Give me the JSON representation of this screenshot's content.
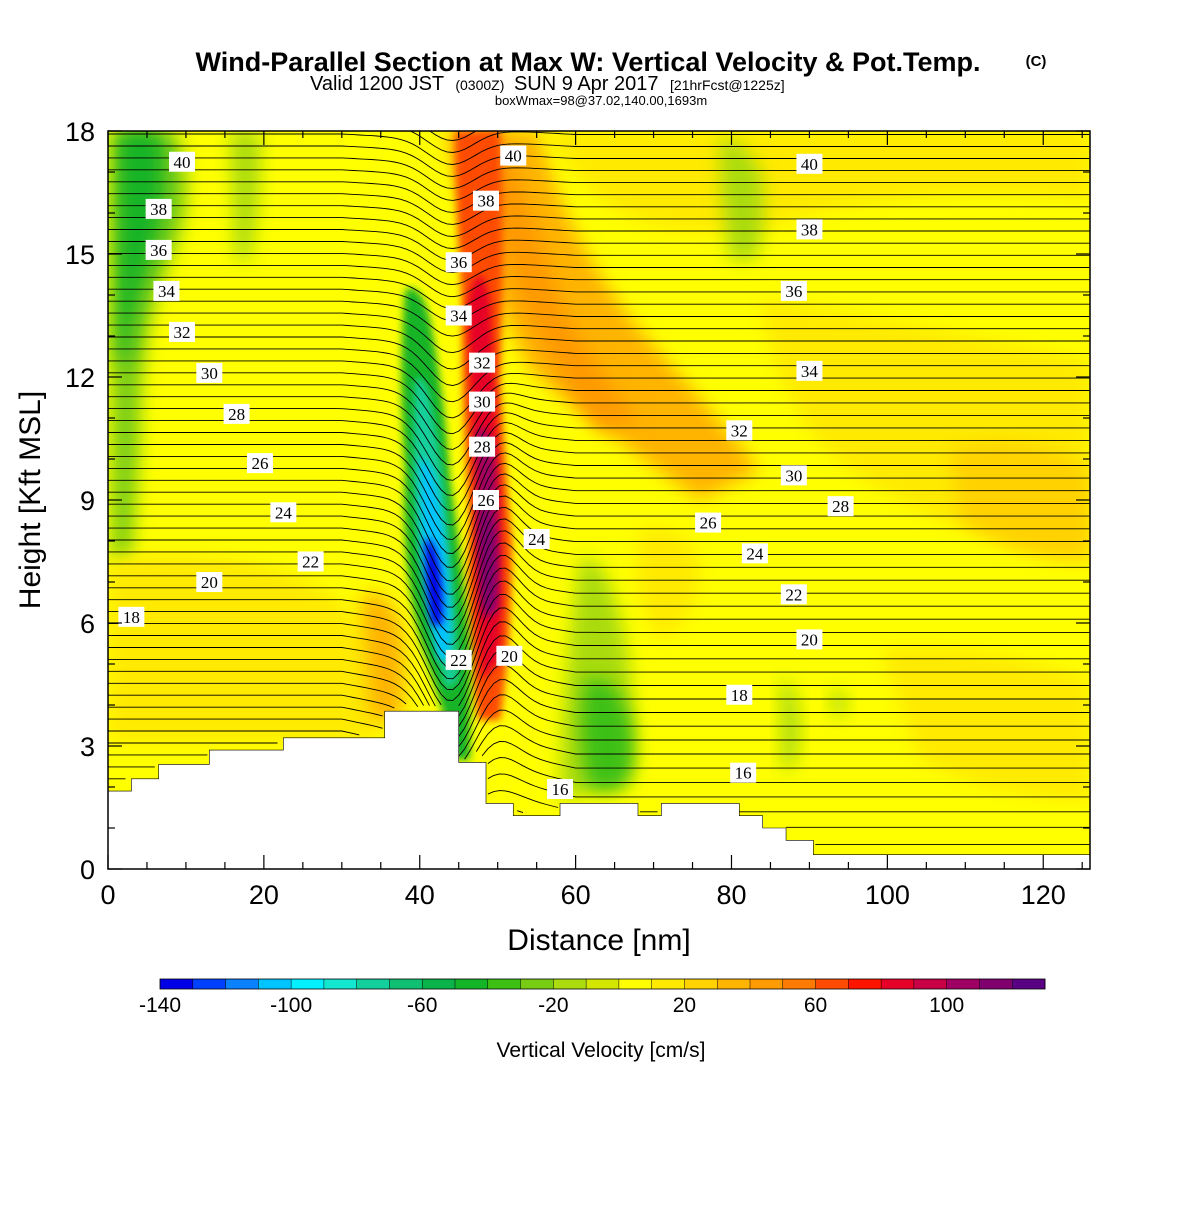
{
  "header": {
    "title": "Wind-Parallel Section at Max W: Vertical Velocity & Pot.Temp.",
    "copyright": "(C)",
    "valid_prefix": "Valid 1200 JST",
    "valid_utc": "(0300Z)",
    "valid_date": "SUN 9 Apr 2017",
    "forecast": "[21hrFcst@1225z]",
    "boxinfo": "boxWmax=98@37.02,140.00,1693m"
  },
  "colors": {
    "background": "#ffff00",
    "terrain": "#ffffff",
    "contour": "#000000"
  },
  "chart_data": {
    "type": "heatmap",
    "xlabel": "Distance [nm]",
    "ylabel": "Height [Kft MSL]",
    "xlim": [
      0,
      126
    ],
    "ylim": [
      0,
      18
    ],
    "xticks": [
      0,
      20,
      40,
      60,
      80,
      100,
      120
    ],
    "yticks": [
      0,
      3,
      6,
      9,
      12,
      15,
      18
    ],
    "colorbar": {
      "title": "Vertical Velocity [cm/s]",
      "min": -140,
      "max": 120,
      "step": 10,
      "tick_values": [
        -140,
        -100,
        -60,
        -20,
        20,
        60,
        100
      ],
      "colors": [
        "#0000e6",
        "#0040ff",
        "#0a82ff",
        "#00c4ff",
        "#00f0ff",
        "#14e6cf",
        "#12cf9b",
        "#10c072",
        "#0ab44a",
        "#14b428",
        "#3cc014",
        "#78cc14",
        "#aadc10",
        "#d2e600",
        "#ffff00",
        "#ffea00",
        "#ffd200",
        "#ffb400",
        "#ff9a00",
        "#ff7a00",
        "#ff4c00",
        "#ff1400",
        "#e60028",
        "#c80046",
        "#a00064",
        "#80006e",
        "#5a0082"
      ]
    },
    "terrain_profile_kft": [
      {
        "x": 0,
        "top": 1.9
      },
      {
        "x": 3,
        "top": 2.2
      },
      {
        "x": 6.5,
        "top": 2.55
      },
      {
        "x": 13,
        "top": 2.9
      },
      {
        "x": 22.5,
        "top": 3.2
      },
      {
        "x": 35.5,
        "top": 3.85
      },
      {
        "x": 45,
        "top": 2.6
      },
      {
        "x": 48.5,
        "top": 1.6
      },
      {
        "x": 52,
        "top": 1.3
      },
      {
        "x": 58,
        "top": 1.6
      },
      {
        "x": 68,
        "top": 1.3
      },
      {
        "x": 71,
        "top": 1.6
      },
      {
        "x": 81,
        "top": 1.3
      },
      {
        "x": 84,
        "top": 1.0
      },
      {
        "x": 87,
        "top": 0.7
      },
      {
        "x": 90.5,
        "top": 0.35
      },
      {
        "x": 126,
        "top": 0.35
      }
    ],
    "velocity_features": [
      {
        "kind": "downdraft",
        "x": 42.5,
        "y": 7.2,
        "min_cms": -140
      },
      {
        "kind": "updraft",
        "x": 48.5,
        "y": 7.8,
        "max_cms": 120
      },
      {
        "kind": "downdraft",
        "x": 4.5,
        "y": 14,
        "min_cms": -50
      },
      {
        "kind": "updraft",
        "x": 60,
        "y": 13,
        "max_cms": 40
      },
      {
        "kind": "downdraft",
        "x": 63,
        "y": 3,
        "min_cms": -50
      }
    ],
    "theta_contours": {
      "unit": "C",
      "levels": [
        16,
        18,
        20,
        22,
        24,
        26,
        28,
        30,
        32,
        34,
        36,
        38,
        40
      ],
      "labels": [
        {
          "text": "40",
          "x": 9.5,
          "y": 17.25
        },
        {
          "text": "38",
          "x": 6.5,
          "y": 16.1
        },
        {
          "text": "36",
          "x": 6.5,
          "y": 15.1
        },
        {
          "text": "34",
          "x": 7.5,
          "y": 14.1
        },
        {
          "text": "32",
          "x": 9.5,
          "y": 13.1
        },
        {
          "text": "30",
          "x": 13,
          "y": 12.1
        },
        {
          "text": "28",
          "x": 16.5,
          "y": 11.1
        },
        {
          "text": "26",
          "x": 19.5,
          "y": 9.9
        },
        {
          "text": "24",
          "x": 22.5,
          "y": 8.7
        },
        {
          "text": "22",
          "x": 26,
          "y": 7.5
        },
        {
          "text": "20",
          "x": 13,
          "y": 7.0
        },
        {
          "text": "18",
          "x": 3,
          "y": 6.15
        },
        {
          "text": "40",
          "x": 52,
          "y": 17.4
        },
        {
          "text": "38",
          "x": 48.5,
          "y": 16.3
        },
        {
          "text": "36",
          "x": 45,
          "y": 14.8
        },
        {
          "text": "34",
          "x": 45,
          "y": 13.5
        },
        {
          "text": "32",
          "x": 48,
          "y": 12.35
        },
        {
          "text": "30",
          "x": 48,
          "y": 11.4
        },
        {
          "text": "28",
          "x": 48,
          "y": 10.3
        },
        {
          "text": "26",
          "x": 48.5,
          "y": 9.0
        },
        {
          "text": "24",
          "x": 55,
          "y": 8.05
        },
        {
          "text": "22",
          "x": 45,
          "y": 5.1
        },
        {
          "text": "20",
          "x": 51.5,
          "y": 5.2
        },
        {
          "text": "16",
          "x": 58,
          "y": 1.95
        },
        {
          "text": "40",
          "x": 90,
          "y": 17.2
        },
        {
          "text": "38",
          "x": 90,
          "y": 15.6
        },
        {
          "text": "36",
          "x": 88,
          "y": 14.1
        },
        {
          "text": "34",
          "x": 90,
          "y": 12.15
        },
        {
          "text": "32",
          "x": 81,
          "y": 10.7
        },
        {
          "text": "30",
          "x": 88,
          "y": 9.6
        },
        {
          "text": "28",
          "x": 94,
          "y": 8.85
        },
        {
          "text": "26",
          "x": 77,
          "y": 8.45
        },
        {
          "text": "24",
          "x": 83,
          "y": 7.7
        },
        {
          "text": "22",
          "x": 88,
          "y": 6.7
        },
        {
          "text": "20",
          "x": 90,
          "y": 5.6
        },
        {
          "text": "18",
          "x": 81,
          "y": 4.25
        },
        {
          "text": "16",
          "x": 81.5,
          "y": 2.35
        }
      ]
    }
  }
}
